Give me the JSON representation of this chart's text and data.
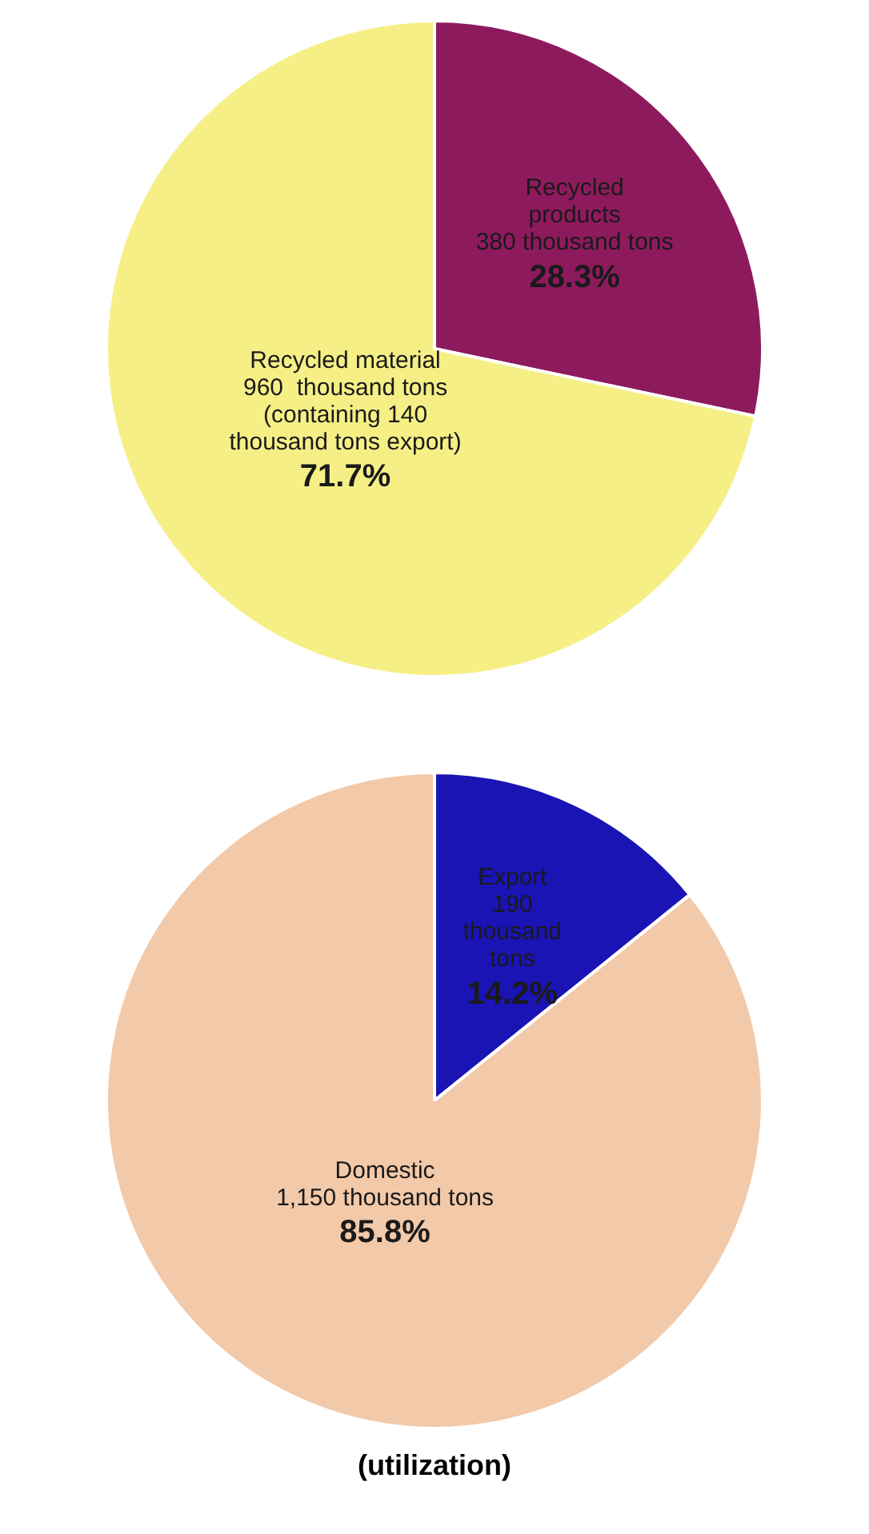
{
  "chart_data": [
    {
      "type": "pie",
      "categories": [
        "Recycled\nproducts\n380 thousand tons",
        "Recycled material\n960  thousand tons\n(containing 140\nthousand tons export)"
      ],
      "values": [
        28.3,
        71.7
      ],
      "colors": [
        "#8e1a5e",
        "#f5ef86"
      ],
      "value_labels": [
        "28.3%",
        "71.7%"
      ]
    },
    {
      "type": "pie",
      "categories": [
        "Export\n190\nthousand\ntons",
        "Domestic\n1,150 thousand tons"
      ],
      "values": [
        14.2,
        85.8
      ],
      "colors": [
        "#1a14b4",
        "#f2c9a9"
      ],
      "value_labels": [
        "14.2%",
        "85.8%"
      ],
      "annotations": [
        "(utilization)"
      ]
    }
  ]
}
